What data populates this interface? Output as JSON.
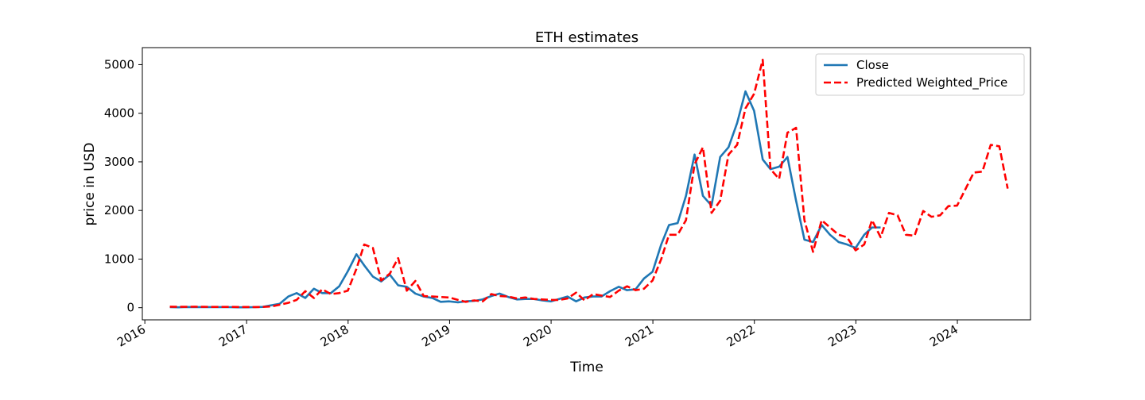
{
  "chart_data": {
    "type": "line",
    "title": "ETH estimates",
    "xlabel": "Time",
    "ylabel": "price in USD",
    "xlim": [
      "2015-12-23",
      "2024-09-20"
    ],
    "ylim": [
      -250,
      5350
    ],
    "x_ticks": [
      "2016",
      "2017",
      "2018",
      "2019",
      "2020",
      "2021",
      "2022",
      "2023",
      "2024"
    ],
    "y_ticks": [
      0,
      1000,
      2000,
      3000,
      4000,
      5000
    ],
    "legend_position": "top-right",
    "grid": false,
    "series": [
      {
        "name": "Close",
        "color": "#1f77b4",
        "style": "solid",
        "points": [
          [
            "2016-03-31",
            11
          ],
          [
            "2016-04-30",
            9
          ],
          [
            "2016-05-31",
            14
          ],
          [
            "2016-06-30",
            12
          ],
          [
            "2016-07-31",
            13
          ],
          [
            "2016-08-31",
            12
          ],
          [
            "2016-09-30",
            13
          ],
          [
            "2016-10-31",
            11
          ],
          [
            "2016-11-30",
            9
          ],
          [
            "2016-12-31",
            8
          ],
          [
            "2017-01-31",
            11
          ],
          [
            "2017-02-28",
            16
          ],
          [
            "2017-03-31",
            50
          ],
          [
            "2017-04-30",
            80
          ],
          [
            "2017-05-31",
            230
          ],
          [
            "2017-06-30",
            300
          ],
          [
            "2017-07-31",
            200
          ],
          [
            "2017-08-31",
            390
          ],
          [
            "2017-09-30",
            300
          ],
          [
            "2017-10-31",
            300
          ],
          [
            "2017-11-30",
            440
          ],
          [
            "2017-12-31",
            750
          ],
          [
            "2018-01-31",
            1100
          ],
          [
            "2018-02-28",
            870
          ],
          [
            "2018-03-31",
            640
          ],
          [
            "2018-04-30",
            540
          ],
          [
            "2018-05-31",
            680
          ],
          [
            "2018-06-30",
            460
          ],
          [
            "2018-07-31",
            430
          ],
          [
            "2018-08-31",
            290
          ],
          [
            "2018-09-30",
            230
          ],
          [
            "2018-10-31",
            200
          ],
          [
            "2018-11-30",
            120
          ],
          [
            "2018-12-31",
            130
          ],
          [
            "2019-01-31",
            110
          ],
          [
            "2019-02-28",
            130
          ],
          [
            "2019-03-31",
            140
          ],
          [
            "2019-04-30",
            170
          ],
          [
            "2019-05-31",
            240
          ],
          [
            "2019-06-30",
            290
          ],
          [
            "2019-07-31",
            220
          ],
          [
            "2019-08-31",
            170
          ],
          [
            "2019-09-30",
            180
          ],
          [
            "2019-10-31",
            180
          ],
          [
            "2019-11-30",
            150
          ],
          [
            "2019-12-31",
            130
          ],
          [
            "2020-01-31",
            180
          ],
          [
            "2020-02-29",
            230
          ],
          [
            "2020-03-31",
            130
          ],
          [
            "2020-04-30",
            210
          ],
          [
            "2020-05-31",
            230
          ],
          [
            "2020-06-30",
            230
          ],
          [
            "2020-07-31",
            340
          ],
          [
            "2020-08-31",
            430
          ],
          [
            "2020-09-30",
            360
          ],
          [
            "2020-10-31",
            380
          ],
          [
            "2020-11-30",
            600
          ],
          [
            "2020-12-31",
            740
          ],
          [
            "2021-01-31",
            1300
          ],
          [
            "2021-02-28",
            1700
          ],
          [
            "2021-03-31",
            1740
          ],
          [
            "2021-04-30",
            2300
          ],
          [
            "2021-05-31",
            3150
          ],
          [
            "2021-06-30",
            2300
          ],
          [
            "2021-07-31",
            2100
          ],
          [
            "2021-08-31",
            3100
          ],
          [
            "2021-09-30",
            3300
          ],
          [
            "2021-10-31",
            3800
          ],
          [
            "2021-11-30",
            4450
          ],
          [
            "2021-12-31",
            4050
          ],
          [
            "2022-01-31",
            3050
          ],
          [
            "2022-02-28",
            2850
          ],
          [
            "2022-03-31",
            2900
          ],
          [
            "2022-04-30",
            3100
          ],
          [
            "2022-05-31",
            2200
          ],
          [
            "2022-06-30",
            1400
          ],
          [
            "2022-07-31",
            1350
          ],
          [
            "2022-08-31",
            1700
          ],
          [
            "2022-09-30",
            1500
          ],
          [
            "2022-10-31",
            1350
          ],
          [
            "2022-11-30",
            1300
          ],
          [
            "2022-12-31",
            1230
          ],
          [
            "2023-01-31",
            1500
          ],
          [
            "2023-02-28",
            1650
          ],
          [
            "2023-03-31",
            1650
          ]
        ]
      },
      {
        "name": "Predicted Weighted_Price",
        "color": "#ff0000",
        "style": "dashed",
        "points": [
          [
            "2016-03-31",
            20
          ],
          [
            "2016-04-30",
            18
          ],
          [
            "2016-05-31",
            19
          ],
          [
            "2016-06-30",
            20
          ],
          [
            "2016-07-31",
            18
          ],
          [
            "2016-08-31",
            17
          ],
          [
            "2016-09-30",
            16
          ],
          [
            "2016-10-31",
            17
          ],
          [
            "2016-11-30",
            15
          ],
          [
            "2016-12-31",
            14
          ],
          [
            "2017-01-31",
            13
          ],
          [
            "2017-02-28",
            16
          ],
          [
            "2017-03-31",
            25
          ],
          [
            "2017-04-30",
            60
          ],
          [
            "2017-05-31",
            100
          ],
          [
            "2017-06-30",
            160
          ],
          [
            "2017-07-31",
            340
          ],
          [
            "2017-08-31",
            200
          ],
          [
            "2017-09-30",
            380
          ],
          [
            "2017-10-31",
            280
          ],
          [
            "2017-11-30",
            300
          ],
          [
            "2017-12-31",
            350
          ],
          [
            "2018-01-31",
            800
          ],
          [
            "2018-02-28",
            1300
          ],
          [
            "2018-03-31",
            1230
          ],
          [
            "2018-04-30",
            560
          ],
          [
            "2018-05-31",
            700
          ],
          [
            "2018-06-30",
            1020
          ],
          [
            "2018-07-31",
            350
          ],
          [
            "2018-08-31",
            550
          ],
          [
            "2018-09-30",
            240
          ],
          [
            "2018-10-31",
            230
          ],
          [
            "2018-11-30",
            220
          ],
          [
            "2018-12-31",
            210
          ],
          [
            "2019-01-31",
            160
          ],
          [
            "2019-02-28",
            120
          ],
          [
            "2019-03-31",
            150
          ],
          [
            "2019-04-30",
            130
          ],
          [
            "2019-05-31",
            280
          ],
          [
            "2019-06-30",
            240
          ],
          [
            "2019-07-31",
            230
          ],
          [
            "2019-08-31",
            190
          ],
          [
            "2019-09-30",
            210
          ],
          [
            "2019-10-31",
            180
          ],
          [
            "2019-11-30",
            170
          ],
          [
            "2019-12-31",
            160
          ],
          [
            "2020-01-31",
            160
          ],
          [
            "2020-02-29",
            190
          ],
          [
            "2020-03-31",
            310
          ],
          [
            "2020-04-30",
            150
          ],
          [
            "2020-05-31",
            280
          ],
          [
            "2020-06-30",
            250
          ],
          [
            "2020-07-31",
            220
          ],
          [
            "2020-08-31",
            350
          ],
          [
            "2020-09-30",
            440
          ],
          [
            "2020-10-31",
            360
          ],
          [
            "2020-11-30",
            390
          ],
          [
            "2020-12-31",
            560
          ],
          [
            "2021-01-31",
            1000
          ],
          [
            "2021-02-28",
            1500
          ],
          [
            "2021-03-31",
            1500
          ],
          [
            "2021-04-30",
            1800
          ],
          [
            "2021-05-31",
            2950
          ],
          [
            "2021-06-30",
            3300
          ],
          [
            "2021-07-31",
            1950
          ],
          [
            "2021-08-31",
            2200
          ],
          [
            "2021-09-30",
            3150
          ],
          [
            "2021-10-31",
            3350
          ],
          [
            "2021-11-30",
            4100
          ],
          [
            "2021-12-31",
            4400
          ],
          [
            "2022-01-31",
            5100
          ],
          [
            "2022-02-28",
            2850
          ],
          [
            "2022-03-31",
            2650
          ],
          [
            "2022-04-30",
            3600
          ],
          [
            "2022-05-31",
            3700
          ],
          [
            "2022-06-30",
            1800
          ],
          [
            "2022-07-31",
            1150
          ],
          [
            "2022-08-31",
            1800
          ],
          [
            "2022-09-30",
            1650
          ],
          [
            "2022-10-31",
            1500
          ],
          [
            "2022-11-30",
            1450
          ],
          [
            "2022-12-31",
            1180
          ],
          [
            "2023-01-31",
            1300
          ],
          [
            "2023-02-28",
            1800
          ],
          [
            "2023-03-31",
            1450
          ],
          [
            "2023-04-30",
            1950
          ],
          [
            "2023-05-31",
            1900
          ],
          [
            "2023-06-30",
            1500
          ],
          [
            "2023-07-31",
            1480
          ],
          [
            "2023-08-31",
            1990
          ],
          [
            "2023-09-30",
            1870
          ],
          [
            "2023-10-31",
            1900
          ],
          [
            "2023-11-30",
            2090
          ],
          [
            "2023-12-31",
            2100
          ],
          [
            "2024-01-31",
            2450
          ],
          [
            "2024-02-29",
            2780
          ],
          [
            "2024-03-31",
            2800
          ],
          [
            "2024-04-30",
            3350
          ],
          [
            "2024-05-31",
            3320
          ],
          [
            "2024-06-30",
            2450
          ]
        ]
      }
    ]
  }
}
